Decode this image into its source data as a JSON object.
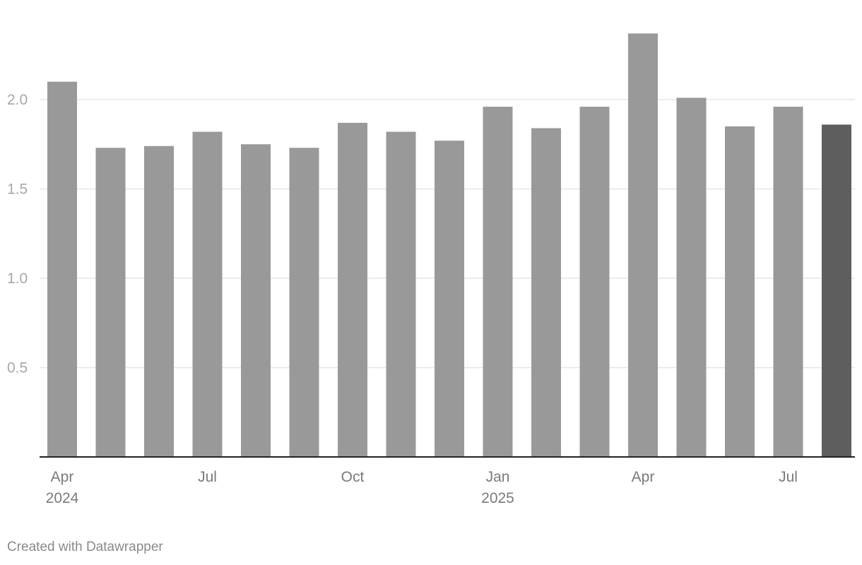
{
  "chart_data": {
    "type": "bar",
    "categories": [
      "2024-04",
      "2024-05",
      "2024-06",
      "2024-07",
      "2024-08",
      "2024-09",
      "2024-10",
      "2024-11",
      "2024-12",
      "2025-01",
      "2025-02",
      "2025-03",
      "2025-04",
      "2025-05",
      "2025-06",
      "2025-07",
      "2025-08"
    ],
    "values": [
      2.1,
      1.73,
      1.74,
      1.82,
      1.75,
      1.73,
      1.87,
      1.82,
      1.77,
      1.96,
      1.84,
      1.96,
      2.37,
      2.01,
      1.85,
      1.96,
      1.86
    ],
    "highlight_index": 16,
    "ylim": [
      0,
      2.4
    ],
    "yticks": [
      {
        "value": 0.5,
        "label": "0.5"
      },
      {
        "value": 1.0,
        "label": "1.0"
      },
      {
        "value": 1.5,
        "label": "1.5"
      },
      {
        "value": 2.0,
        "label": "2.0"
      }
    ],
    "xticks": [
      {
        "index": 0,
        "label": "Apr",
        "sublabel": "2024"
      },
      {
        "index": 3,
        "label": "Jul",
        "sublabel": ""
      },
      {
        "index": 6,
        "label": "Oct",
        "sublabel": ""
      },
      {
        "index": 9,
        "label": "Jan",
        "sublabel": "2025"
      },
      {
        "index": 12,
        "label": "Apr",
        "sublabel": ""
      },
      {
        "index": 15,
        "label": "Jul",
        "sublabel": ""
      }
    ],
    "title": "",
    "xlabel": "",
    "ylabel": "",
    "grid": true,
    "colors": {
      "bar": "#999999",
      "highlight": "#5e5e5e",
      "grid": "#e6e6e6",
      "baseline": "#222222"
    }
  },
  "footer": {
    "credit": "Created with Datawrapper"
  }
}
